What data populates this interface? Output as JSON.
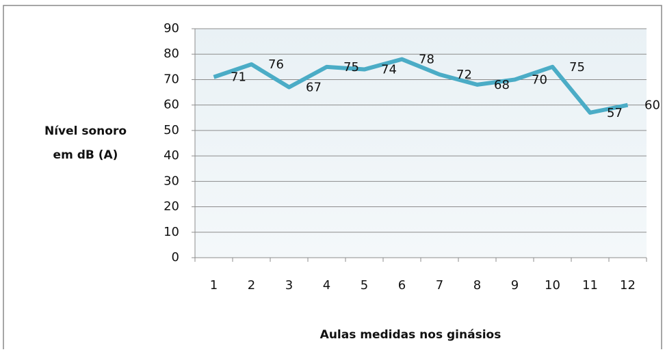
{
  "chart_data": {
    "type": "line",
    "xlabel": "Aulas medidas nos ginásios",
    "ylabel": [
      "Nível sonoro",
      "em dB (A)"
    ],
    "categories": [
      "1",
      "2",
      "3",
      "4",
      "5",
      "6",
      "7",
      "8",
      "9",
      "10",
      "11",
      "12"
    ],
    "series": [
      {
        "color": "#4bacc6",
        "values": [
          71,
          76,
          67,
          75,
          74,
          78,
          72,
          68,
          70,
          75,
          57,
          60
        ]
      }
    ],
    "ylim": [
      0,
      90
    ],
    "yticks": [
      0,
      10,
      20,
      30,
      40,
      50,
      60,
      70,
      80,
      90
    ],
    "grid": true
  }
}
